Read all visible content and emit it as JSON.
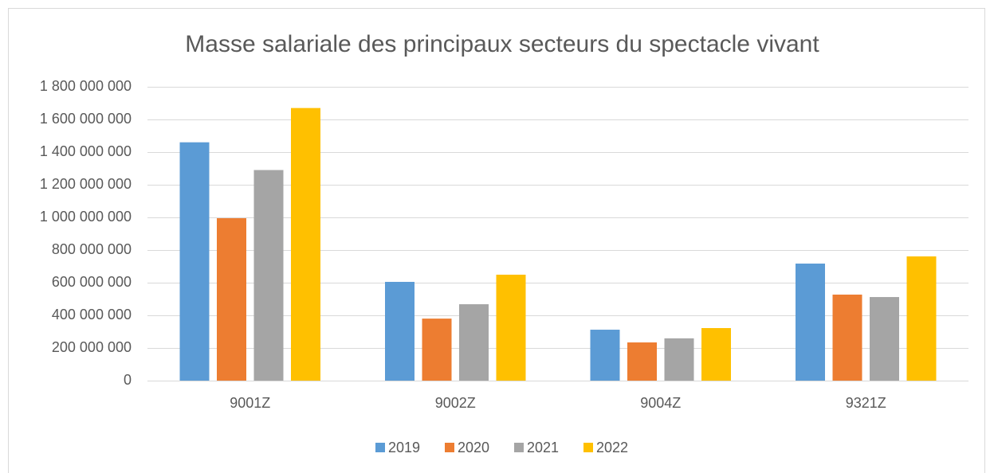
{
  "chart_data": {
    "type": "bar",
    "title": "Masse salariale des principaux secteurs du spectacle vivant",
    "categories": [
      "9001Z",
      "9002Z",
      "9004Z",
      "9321Z"
    ],
    "series": [
      {
        "name": "2019",
        "color": "#5b9bd5",
        "values": [
          1460000000,
          605000000,
          312000000,
          717000000
        ]
      },
      {
        "name": "2020",
        "color": "#ed7d31",
        "values": [
          995000000,
          380000000,
          234000000,
          527000000
        ]
      },
      {
        "name": "2021",
        "color": "#a5a5a5",
        "values": [
          1290000000,
          468000000,
          259000000,
          512000000
        ]
      },
      {
        "name": "2022",
        "color": "#ffc000",
        "values": [
          1670000000,
          649000000,
          322000000,
          761000000
        ]
      }
    ],
    "ylim": [
      0,
      1800000000
    ],
    "yticks": [
      0,
      {
        "value": 200000000,
        "label": "200 000 000"
      },
      {
        "value": 400000000,
        "label": "400 000 000"
      },
      {
        "value": 600000000,
        "label": "600 000 000"
      },
      {
        "value": 800000000,
        "label": "800 000 000"
      },
      {
        "value": 1000000000,
        "label": "1 000 000 000"
      },
      {
        "value": 1200000000,
        "label": "1 200 000 000"
      },
      {
        "value": 1400000000,
        "label": "1 400 000 000"
      },
      {
        "value": 1600000000,
        "label": "1 600 000 000"
      },
      {
        "value": 1800000000,
        "label": "1 800 000 000"
      }
    ],
    "grid": true,
    "legend": "bottom"
  }
}
